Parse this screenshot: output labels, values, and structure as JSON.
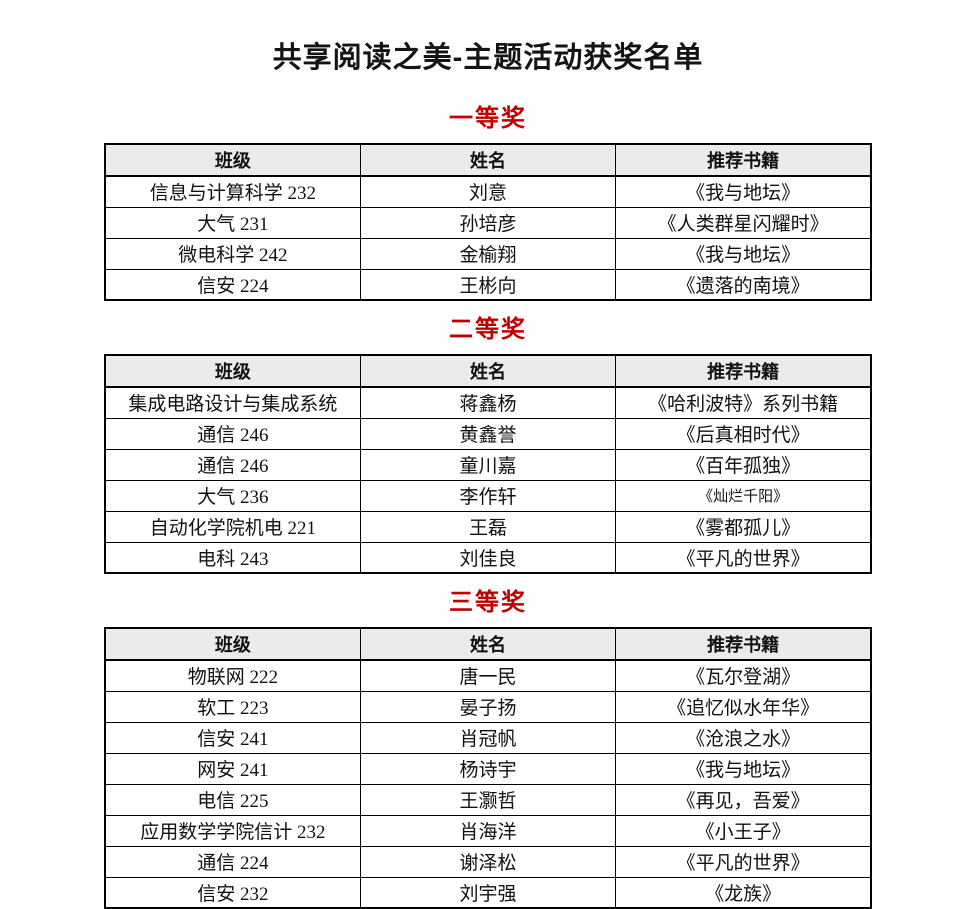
{
  "page": {
    "title": "共享阅读之美-主题活动获奖名单"
  },
  "colors": {
    "prize_red": "#C00000",
    "header_bg": "#EBEBEB",
    "border": "#000000"
  },
  "sections": [
    {
      "prize": "一等奖",
      "headers": [
        "班级",
        "姓名",
        "推荐书籍"
      ],
      "rows": [
        [
          "信息与计算科学 232",
          "刘意",
          "《我与地坛》"
        ],
        [
          "大气 231",
          "孙培彦",
          "《人类群星闪耀时》"
        ],
        [
          "微电科学 242",
          "金榆翔",
          "《我与地坛》"
        ],
        [
          "信安 224",
          "王彬向",
          "《遗落的南境》"
        ]
      ]
    },
    {
      "prize": "二等奖",
      "headers": [
        "班级",
        "姓名",
        "推荐书籍"
      ],
      "rows": [
        [
          "集成电路设计与集成系统",
          "蒋鑫杨",
          "《哈利波特》系列书籍"
        ],
        [
          "通信 246",
          "黄鑫誉",
          "《后真相时代》"
        ],
        [
          "通信 246",
          "童川嘉",
          "《百年孤独》"
        ],
        [
          "大气 236",
          "李作轩",
          "《灿烂千阳》"
        ],
        [
          "自动化学院机电 221",
          "王磊",
          "《雾都孤儿》"
        ],
        [
          "电科 243",
          "刘佳良",
          "《平凡的世界》"
        ]
      ]
    },
    {
      "prize": "三等奖",
      "headers": [
        "班级",
        "姓名",
        "推荐书籍"
      ],
      "rows": [
        [
          "物联网 222",
          "唐一民",
          "《瓦尔登湖》"
        ],
        [
          "软工 223",
          "晏子扬",
          "《追忆似水年华》"
        ],
        [
          "信安 241",
          "肖冠帆",
          "《沧浪之水》"
        ],
        [
          "网安 241",
          "杨诗宇",
          "《我与地坛》"
        ],
        [
          "电信 225",
          "王灏哲",
          "《再见，吾爱》"
        ],
        [
          "应用数学学院信计 232",
          "肖海洋",
          "《小王子》"
        ],
        [
          "通信 224",
          "谢泽松",
          "《平凡的世界》"
        ],
        [
          "信安 232",
          "刘宇强",
          "《龙族》"
        ]
      ]
    }
  ]
}
